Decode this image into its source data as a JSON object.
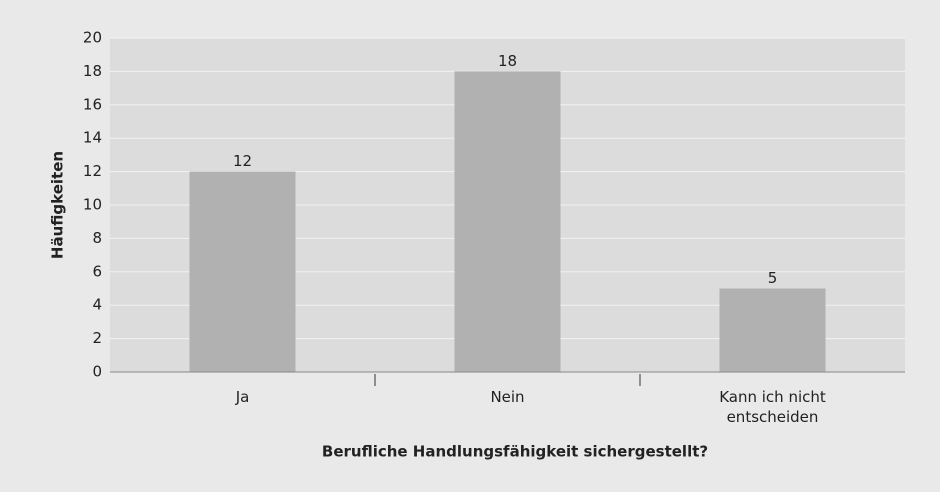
{
  "chart_data": {
    "type": "bar",
    "categories": [
      "Ja",
      "Nein",
      "Kann ich nicht entscheiden"
    ],
    "values": [
      12,
      18,
      5
    ],
    "color": "#b1b1b2",
    "ylim": [
      0,
      20
    ],
    "yticks": [
      0,
      2,
      4,
      6,
      8,
      10,
      12,
      14,
      16,
      18,
      20
    ],
    "grid": true,
    "ylabel": "Häufigkeiten",
    "xlabel": "Berufliche Handlungsfähigkeit sichergestellt?"
  }
}
